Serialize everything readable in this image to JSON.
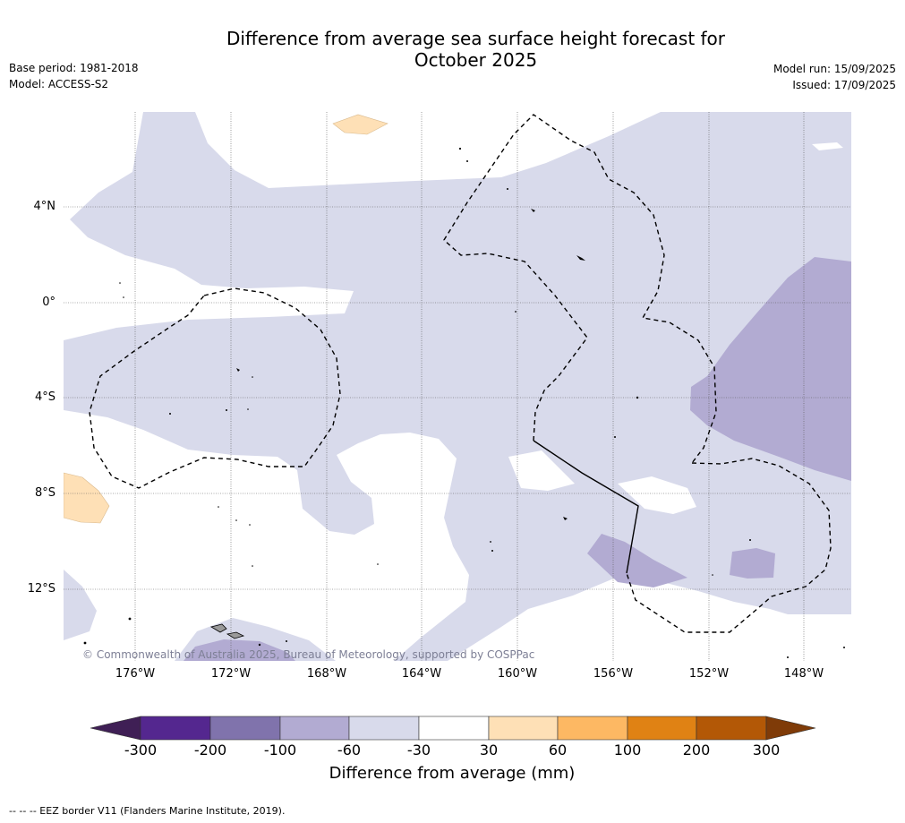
{
  "title_line1": "Difference from average sea surface height forecast for",
  "title_line2": "October 2025",
  "meta_left": [
    "Base period: 1981-2018",
    "Model: ACCESS-S2"
  ],
  "meta_right": [
    "Model run: 15/09/2025",
    "Issued: 17/09/2025"
  ],
  "lat_ticks": [
    "4°N",
    "0°",
    "4°S",
    "8°S",
    "12°S"
  ],
  "lon_ticks": [
    "176°W",
    "172°W",
    "168°W",
    "164°W",
    "160°W",
    "156°W",
    "152°W",
    "148°W"
  ],
  "copyright": "© Commonwealth of Australia 2025, Bureau of Meteorology, supported by COSPPac",
  "colorbar": {
    "label": "Difference from average (mm)",
    "ticks": [
      "-300",
      "-200",
      "-100",
      "-60",
      "-30",
      "30",
      "60",
      "100",
      "200",
      "300"
    ],
    "colors": [
      "#3f1f55",
      "#54278f",
      "#8073ac",
      "#b2abd2",
      "#d8daeb",
      "#ffffff",
      "#fee0b6",
      "#fdb863",
      "#e08214",
      "#b35806",
      "#7f3b08"
    ]
  },
  "footnote": "--  --  -- EEZ border V11 (Flanders Marine Institute, 2019)."
}
